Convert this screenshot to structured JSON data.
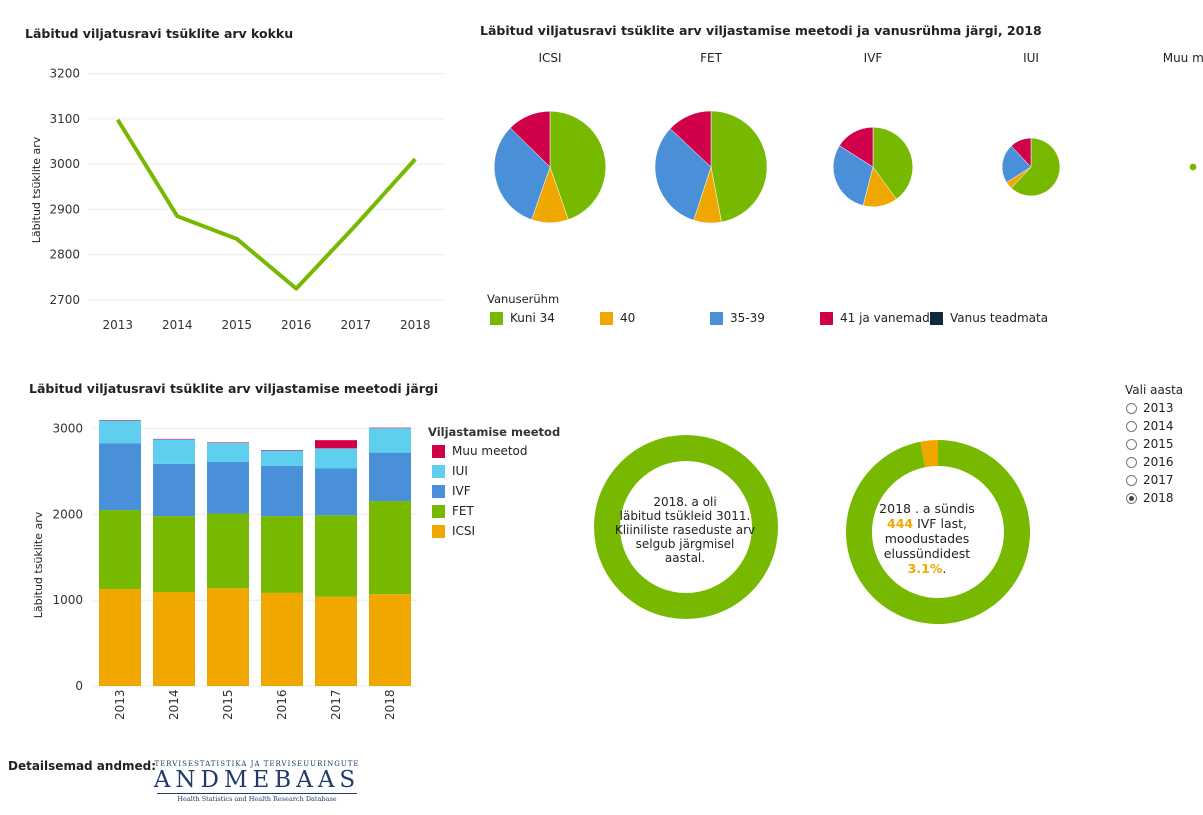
{
  "colors": {
    "kuni34": "#76b900",
    "age40": "#f0a800",
    "age35_39": "#4a90d9",
    "age41": "#d0004a",
    "teadmata": "#0e2a3c",
    "iui": "#5ecfee",
    "muu": "#d0004a",
    "ivf": "#4a90d9",
    "fet": "#76b900",
    "icsi": "#f0a800"
  },
  "line_chart": {
    "title": "Läbitud viljatusravi tsüklite arv kokku",
    "ylabel": "Läbitud tsüklite arv"
  },
  "pie_section": {
    "title": "Läbitud viljatusravi tsüklite arv viljastamise meetodi ja vanusrühma järgi, 2018",
    "legend_title": "Vanuserühm",
    "legend": [
      {
        "label": "Kuni 34",
        "color": "#76b900"
      },
      {
        "label": "40",
        "color": "#f0a800"
      },
      {
        "label": "35-39",
        "color": "#4a90d9"
      },
      {
        "label": "41 ja vanemad",
        "color": "#d0004a"
      },
      {
        "label": "Vanus teadmata",
        "color": "#0e2a3c"
      }
    ]
  },
  "bar_chart": {
    "title": "Läbitud viljatusravi tsüklite arv viljastamise meetodi järgi",
    "ylabel": "Läbitud tsüklite arv",
    "legend_title": "Viljastamise meetod",
    "legend": [
      {
        "label": "Muu meetod",
        "color": "#d0004a"
      },
      {
        "label": "IUI",
        "color": "#5ecfee"
      },
      {
        "label": "IVF",
        "color": "#4a90d9"
      },
      {
        "label": "FET",
        "color": "#76b900"
      },
      {
        "label": "ICSI",
        "color": "#f0a800"
      }
    ]
  },
  "year_selector": {
    "label": "Vali aasta",
    "options": [
      "2013",
      "2014",
      "2015",
      "2016",
      "2017",
      "2018"
    ],
    "selected": "2018"
  },
  "donut1": {
    "line1": "2018. a oli",
    "line2": "läbitud tsükleid 3011.",
    "line3": "Kliiniliste raseduste arv",
    "line4": "selgub järgmisel",
    "line5": "aastal."
  },
  "donut2": {
    "line1": "2018 . a sündis",
    "value1": "444",
    "text1": " IVF last,",
    "line3": "moodustades",
    "line4": "elussündidest",
    "value2": "3.1%",
    "text2": "."
  },
  "footer": {
    "label": "Detailsemad andmed:",
    "logo_top": "Tervisestatistika ja terviseuuringute",
    "logo_main": "ANDMEBAAS",
    "logo_bottom": "Health Statistics and Health Research Database"
  },
  "chart_data": [
    {
      "type": "line",
      "title": "Läbitud viljatusravi tsüklite arv kokku",
      "ylabel": "Läbitud tsüklite arv",
      "x": [
        "2013",
        "2014",
        "2015",
        "2016",
        "2017",
        "2018"
      ],
      "series": [
        {
          "values": [
            3098,
            2885,
            2835,
            2725,
            2865,
            3011
          ]
        }
      ],
      "yticks": [
        2700,
        2800,
        2900,
        3000,
        3100,
        3200
      ],
      "ylim": [
        2680,
        3230
      ],
      "grid": true
    },
    {
      "type": "pie",
      "title": "Läbitud viljatusravi tsüklite arv viljastamise meetodi ja vanusrühma järgi, 2018",
      "legend_title": "Vanuserühm",
      "pies": [
        {
          "label": "ICSI",
          "total": 1080,
          "slices": [
            {
              "name": "Kuni 34",
              "value": 46
            },
            {
              "name": "40",
              "value": 11
            },
            {
              "name": "35-39",
              "value": 33
            },
            {
              "name": "41 ja vanemad",
              "value": 13
            }
          ]
        },
        {
          "label": "FET",
          "total": 1090,
          "slices": [
            {
              "name": "Kuni 34",
              "value": 47
            },
            {
              "name": "40",
              "value": 8
            },
            {
              "name": "35-39",
              "value": 32
            },
            {
              "name": "41 ja vanemad",
              "value": 13
            }
          ]
        },
        {
          "label": "IVF",
          "total": 550,
          "slices": [
            {
              "name": "Kuni 34",
              "value": 40
            },
            {
              "name": "40",
              "value": 14
            },
            {
              "name": "35-39",
              "value": 30
            },
            {
              "name": "41 ja vanemad",
              "value": 16
            }
          ]
        },
        {
          "label": "IUI",
          "total": 290,
          "slices": [
            {
              "name": "Kuni 34",
              "value": 62
            },
            {
              "name": "40",
              "value": 4
            },
            {
              "name": "35-39",
              "value": 22
            },
            {
              "name": "41 ja vanemad",
              "value": 12
            }
          ]
        },
        {
          "label": "Muu meet",
          "total": 4,
          "slices": [
            {
              "name": "Kuni 34",
              "value": 100
            }
          ]
        }
      ]
    },
    {
      "type": "bar",
      "stacked": true,
      "title": "Läbitud viljatusravi tsüklite arv viljastamise meetodi järgi",
      "ylabel": "Läbitud tsüklite arv",
      "legend_title": "Viljastamise meetod",
      "categories": [
        "2013",
        "2014",
        "2015",
        "2016",
        "2017",
        "2018"
      ],
      "series": [
        {
          "name": "ICSI",
          "values": [
            1130,
            1095,
            1140,
            1085,
            1040,
            1070
          ]
        },
        {
          "name": "FET",
          "values": [
            920,
            885,
            870,
            895,
            950,
            1085
          ]
        },
        {
          "name": "IVF",
          "values": [
            780,
            610,
            600,
            585,
            545,
            565
          ]
        },
        {
          "name": "IUI",
          "values": [
            265,
            285,
            225,
            180,
            235,
            285
          ]
        },
        {
          "name": "Muu meetod",
          "values": [
            3,
            5,
            5,
            5,
            95,
            6
          ]
        }
      ],
      "yticks": [
        0,
        1000,
        2000,
        3000
      ],
      "ylim": [
        0,
        3100
      ],
      "grid": true
    },
    {
      "type": "pie",
      "subtype": "donut",
      "slices": [
        {
          "name": "IVF lapsed",
          "value": 3.1
        },
        {
          "name": "muud elussünnid",
          "value": 96.9
        }
      ]
    }
  ]
}
